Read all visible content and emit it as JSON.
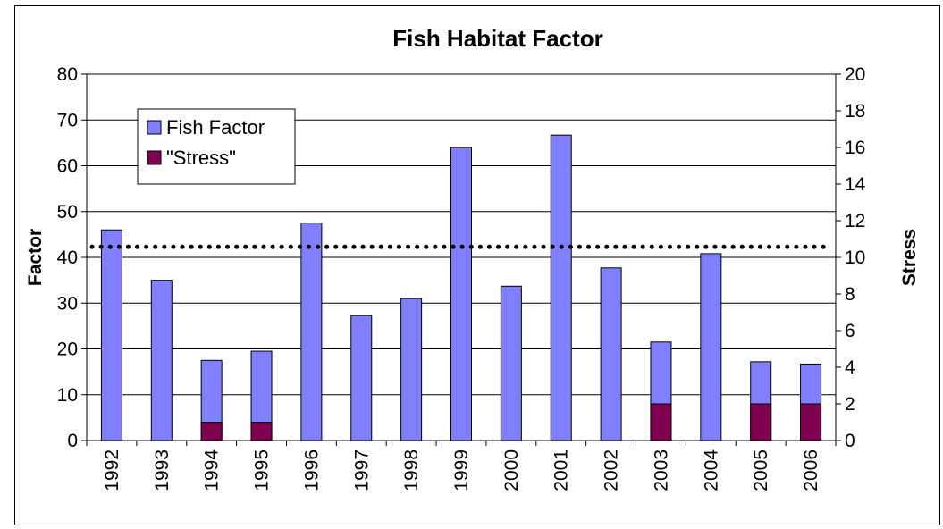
{
  "chart_data": {
    "type": "bar",
    "title": "Fish Habitat Factor",
    "ylabel": "Factor",
    "y2label": "Stress",
    "ylim": [
      0,
      80
    ],
    "yticks": [
      0,
      10,
      20,
      30,
      40,
      50,
      60,
      70,
      80
    ],
    "y2lim": [
      0,
      20
    ],
    "y2ticks": [
      0,
      2,
      4,
      6,
      8,
      10,
      12,
      14,
      16,
      18,
      20
    ],
    "categories": [
      "1992",
      "1993",
      "1994",
      "1995",
      "1996",
      "1997",
      "1998",
      "1999",
      "2000",
      "2001",
      "2002",
      "2003",
      "2004",
      "2005",
      "2006"
    ],
    "series": [
      {
        "name": "Fish Factor",
        "axis": "left",
        "color": "#8080ff",
        "values": [
          46,
          35,
          17.5,
          19.5,
          47.5,
          27.3,
          31,
          64,
          33.7,
          66.7,
          37.7,
          21.5,
          40.8,
          17.2,
          16.7
        ]
      },
      {
        "name": "\"Stress\"",
        "axis": "right",
        "color": "#800050",
        "values": [
          0,
          0,
          1,
          1,
          0,
          0,
          0,
          0,
          0,
          0,
          0,
          2,
          0,
          2,
          2
        ]
      }
    ],
    "reference_line": {
      "value": 42.3,
      "axis": "left",
      "style": "dotted"
    },
    "grid": true,
    "legend": "top-left"
  }
}
